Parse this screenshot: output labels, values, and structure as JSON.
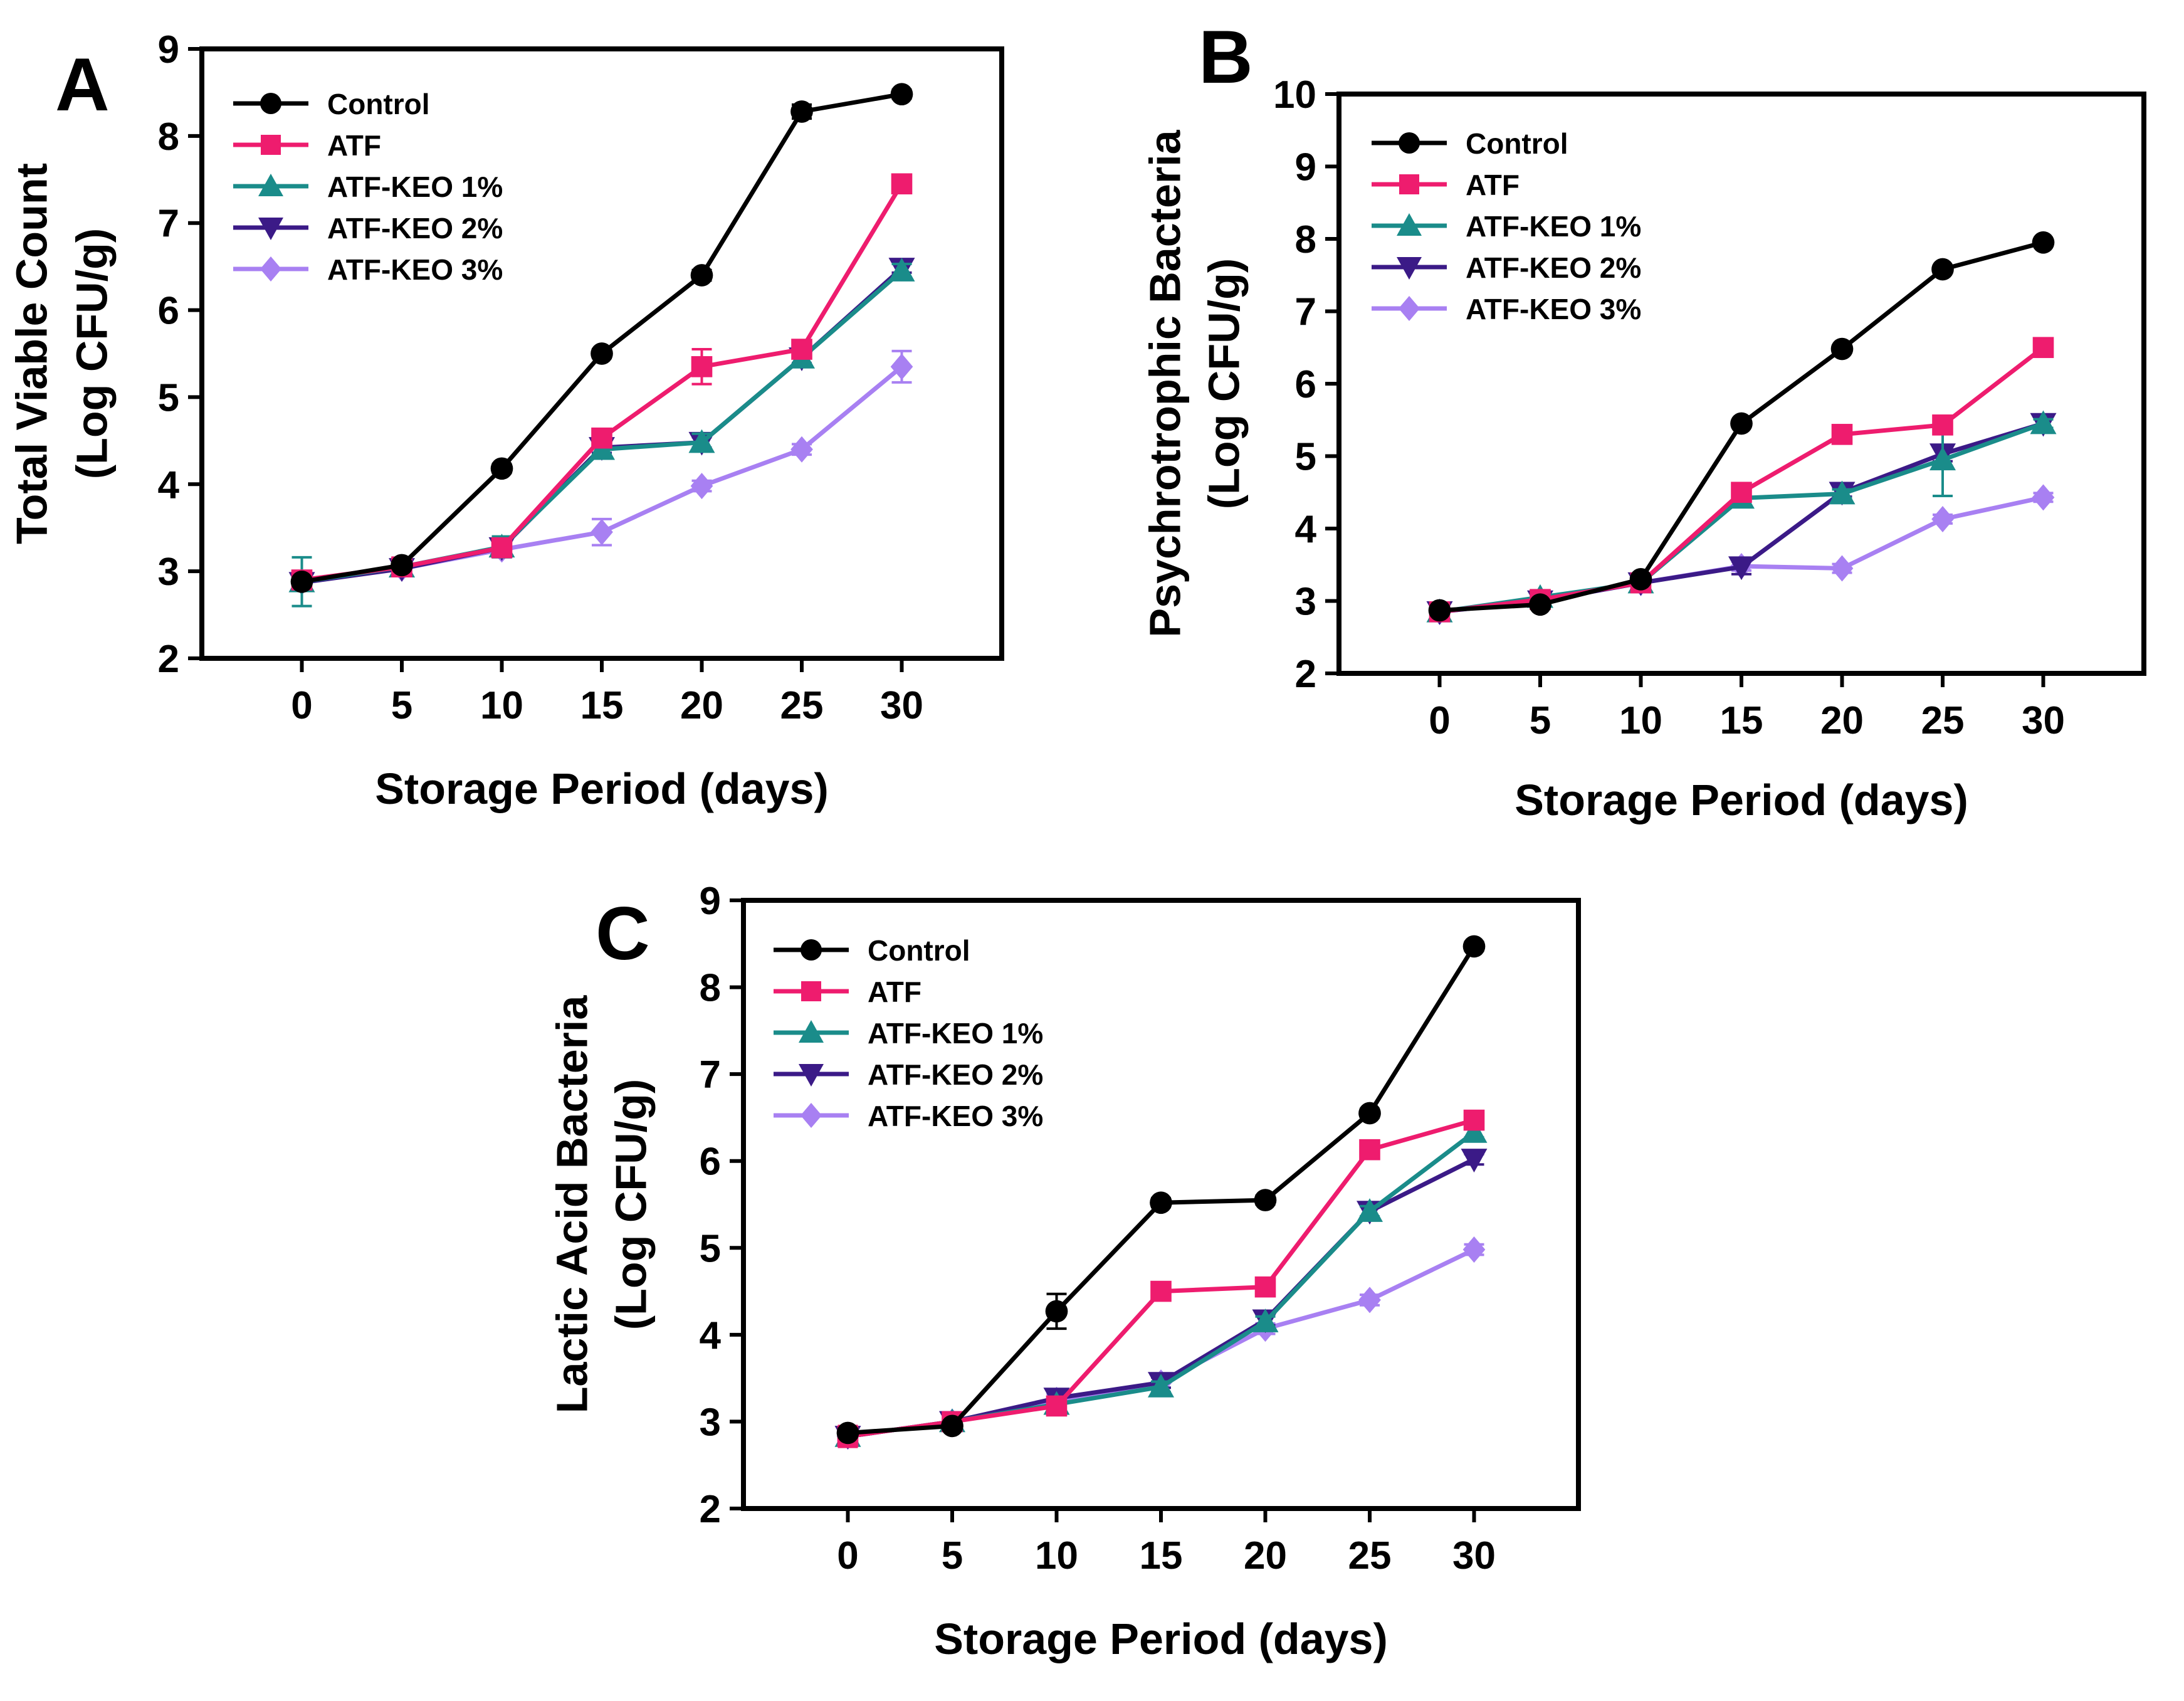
{
  "colors": {
    "Control": "#000000",
    "ATF": "#ee1c6e",
    "ATF-KEO 1%": "#1a8c8a",
    "ATF-KEO 2%": "#3b1a87",
    "ATF-KEO 3%": "#a880f2"
  },
  "markers": {
    "Control": "circle",
    "ATF": "square",
    "ATF-KEO 1%": "triangle-up",
    "ATF-KEO 2%": "triangle-down",
    "ATF-KEO 3%": "diamond"
  },
  "chart_data": [
    {
      "panel": "A",
      "type": "line",
      "x": [
        0,
        5,
        10,
        15,
        20,
        25,
        30
      ],
      "xlabel": "Storage Period (days)",
      "ylabel": [
        "Total Viable Count",
        "(Log CFU/g)"
      ],
      "xlim": [
        -5,
        35
      ],
      "ylim": [
        2,
        9
      ],
      "yticks": [
        2,
        3,
        4,
        5,
        6,
        7,
        8,
        9
      ],
      "xticks": [
        0,
        5,
        10,
        15,
        20,
        25,
        30
      ],
      "legend": "top-left",
      "series": [
        {
          "name": "Control",
          "values": [
            2.88,
            3.07,
            4.18,
            5.5,
            6.4,
            8.28,
            8.48
          ],
          "err": [
            0.04,
            0.04,
            0.05,
            0.05,
            0.06,
            0.08,
            0.05
          ]
        },
        {
          "name": "ATF",
          "values": [
            2.9,
            3.05,
            3.27,
            4.53,
            5.35,
            5.55,
            7.45
          ],
          "err": [
            0.05,
            0.04,
            0.08,
            0.1,
            0.2,
            0.1,
            0.08
          ]
        },
        {
          "name": "ATF-KEO 1%",
          "values": [
            2.88,
            3.05,
            3.28,
            4.4,
            4.48,
            5.45,
            6.45
          ],
          "err": [
            0.28,
            0.04,
            0.12,
            0.08,
            0.1,
            0.07,
            0.08
          ]
        },
        {
          "name": "ATF-KEO 2%",
          "values": [
            2.87,
            3.03,
            3.27,
            4.42,
            4.48,
            5.45,
            6.48
          ],
          "err": [
            0.06,
            0.04,
            0.06,
            0.06,
            0.06,
            0.06,
            0.05
          ]
        },
        {
          "name": "ATF-KEO 3%",
          "values": [
            2.88,
            3.03,
            3.25,
            3.45,
            3.98,
            4.4,
            5.35
          ],
          "err": [
            0.06,
            0.04,
            0.06,
            0.15,
            0.06,
            0.06,
            0.18
          ]
        }
      ]
    },
    {
      "panel": "B",
      "type": "line",
      "x": [
        0,
        5,
        10,
        15,
        20,
        25,
        30
      ],
      "xlabel": "Storage Period (days)",
      "ylabel": [
        "Psychrotrophic Bacteria",
        "(Log CFU/g)"
      ],
      "xlim": [
        -5,
        35
      ],
      "ylim": [
        2,
        10
      ],
      "yticks": [
        2,
        3,
        4,
        5,
        6,
        7,
        8,
        9,
        10
      ],
      "xticks": [
        0,
        5,
        10,
        15,
        20,
        25,
        30
      ],
      "legend": "top-left",
      "series": [
        {
          "name": "Control",
          "values": [
            2.87,
            2.95,
            3.3,
            5.45,
            6.48,
            7.58,
            7.95
          ],
          "err": [
            0.05,
            0.04,
            0.05,
            0.05,
            0.05,
            0.05,
            0.05
          ]
        },
        {
          "name": "ATF",
          "values": [
            2.85,
            3.02,
            3.25,
            4.5,
            5.3,
            5.43,
            6.5
          ],
          "err": [
            0.12,
            0.05,
            0.08,
            0.08,
            0.08,
            0.08,
            0.08
          ]
        },
        {
          "name": "ATF-KEO 1%",
          "values": [
            2.85,
            3.05,
            3.25,
            4.42,
            4.48,
            4.95,
            5.45
          ],
          "err": [
            0.08,
            0.06,
            0.08,
            0.08,
            0.06,
            0.5,
            0.06
          ]
        },
        {
          "name": "ATF-KEO 2%",
          "values": [
            2.85,
            3.0,
            3.25,
            3.47,
            4.5,
            5.03,
            5.45
          ],
          "err": [
            0.06,
            0.05,
            0.06,
            0.1,
            0.06,
            0.1,
            0.06
          ]
        },
        {
          "name": "ATF-KEO 3%",
          "values": [
            2.85,
            3.0,
            3.25,
            3.48,
            3.45,
            4.13,
            4.43
          ],
          "err": [
            0.06,
            0.05,
            0.06,
            0.06,
            0.06,
            0.06,
            0.06
          ]
        }
      ]
    },
    {
      "panel": "C",
      "type": "line",
      "x": [
        0,
        5,
        10,
        15,
        20,
        25,
        30
      ],
      "xlabel": "Storage Period (days)",
      "ylabel": [
        "Lactic Acid Bacteria",
        "(Log CFU/g)"
      ],
      "xlim": [
        -5,
        35
      ],
      "ylim": [
        2,
        9
      ],
      "yticks": [
        2,
        3,
        4,
        5,
        6,
        7,
        8,
        9
      ],
      "xticks": [
        0,
        5,
        10,
        15,
        20,
        25,
        30
      ],
      "legend": "top-left",
      "series": [
        {
          "name": "Control",
          "values": [
            2.87,
            2.95,
            4.27,
            5.52,
            5.55,
            6.55,
            8.47
          ],
          "err": [
            0.05,
            0.04,
            0.2,
            0.05,
            0.05,
            0.05,
            0.05
          ]
        },
        {
          "name": "ATF",
          "values": [
            2.83,
            3.0,
            3.18,
            4.5,
            4.55,
            6.13,
            6.47
          ],
          "err": [
            0.12,
            0.05,
            0.08,
            0.06,
            0.06,
            0.06,
            0.06
          ]
        },
        {
          "name": "ATF-KEO 1%",
          "values": [
            2.83,
            3.0,
            3.2,
            3.4,
            4.15,
            5.42,
            6.33
          ],
          "err": [
            0.06,
            0.05,
            0.08,
            0.06,
            0.06,
            0.06,
            0.06
          ]
        },
        {
          "name": "ATF-KEO 2%",
          "values": [
            2.83,
            3.0,
            3.27,
            3.45,
            4.17,
            5.42,
            6.02
          ],
          "err": [
            0.06,
            0.05,
            0.06,
            0.06,
            0.06,
            0.06,
            0.06
          ]
        },
        {
          "name": "ATF-KEO 3%",
          "values": [
            2.83,
            3.0,
            3.25,
            3.45,
            4.07,
            4.4,
            4.98
          ],
          "err": [
            0.06,
            0.05,
            0.06,
            0.06,
            0.06,
            0.06,
            0.06
          ]
        }
      ]
    }
  ]
}
